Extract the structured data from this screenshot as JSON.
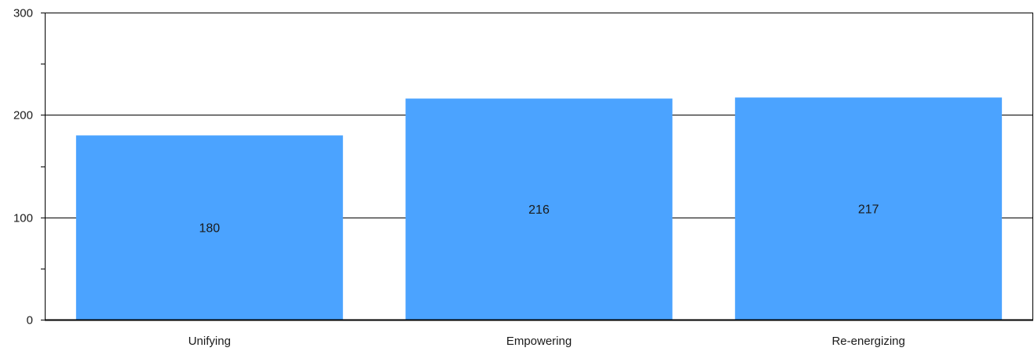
{
  "chart_data": {
    "type": "bar",
    "title": "",
    "xlabel": "",
    "ylabel": "",
    "categories": [
      "Unifying",
      "Empowering",
      "Re-energizing"
    ],
    "values": [
      180,
      216,
      217
    ],
    "data_labels": [
      "180",
      "216",
      "217"
    ],
    "ylim": [
      0,
      300
    ],
    "y_ticks": [
      0,
      100,
      200,
      300
    ],
    "y_tick_labels": [
      "0",
      "100",
      "200",
      "300"
    ],
    "y_minor_ticks": [
      50,
      150,
      250
    ],
    "grid": true,
    "legend": "none",
    "bar_color": "#4ba3ff",
    "axis_color": "#000000",
    "grid_color": "#000000"
  }
}
